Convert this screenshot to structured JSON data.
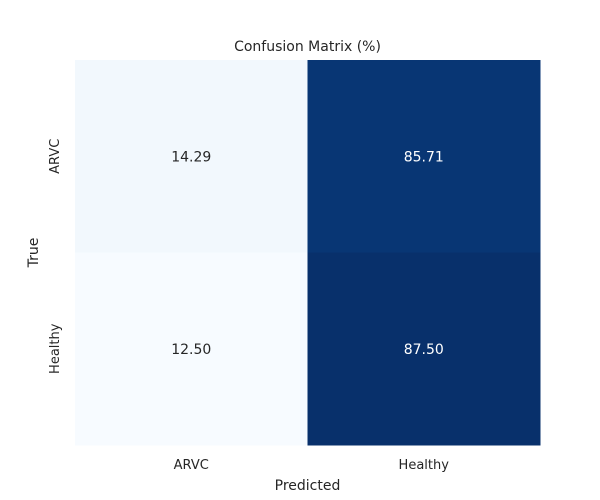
{
  "chart_data": {
    "type": "heatmap",
    "title": "Confusion Matrix (%)",
    "xlabel": "Predicted",
    "ylabel": "True",
    "x_categories": [
      "ARVC",
      "Healthy"
    ],
    "y_categories": [
      "ARVC",
      "Healthy"
    ],
    "values": [
      [
        14.29,
        85.71
      ],
      [
        12.5,
        87.5
      ]
    ],
    "value_labels": [
      [
        "14.29",
        "85.71"
      ],
      [
        "12.50",
        "87.50"
      ]
    ],
    "colormap": "Blues",
    "grid": false,
    "colorbar": false
  },
  "colors": {
    "low": "#f7fbff",
    "high": "#08306b",
    "text_dark": "#262626",
    "text_light": "#ffffff"
  }
}
